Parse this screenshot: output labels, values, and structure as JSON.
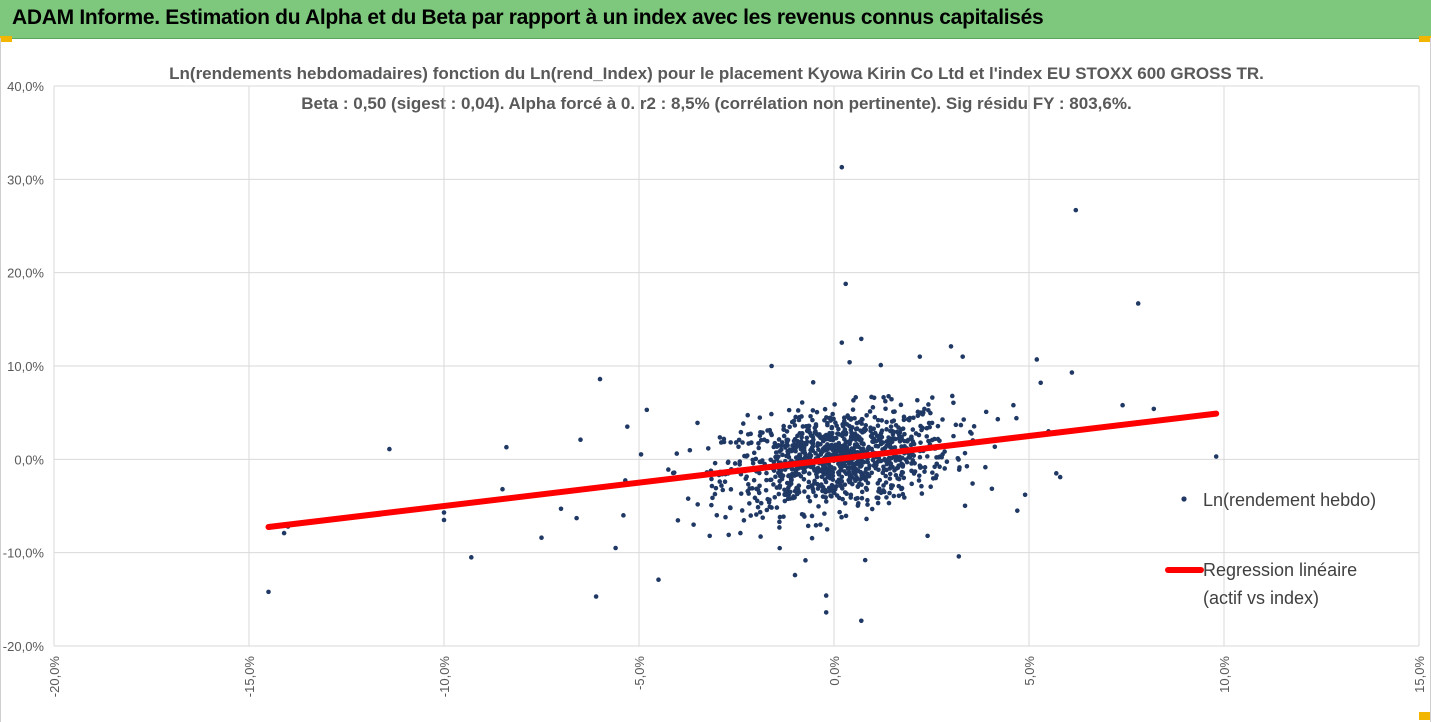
{
  "header": {
    "title": "ADAM Informe. Estimation du Alpha et du Beta par rapport à un index avec les revenus connus capitalisés"
  },
  "colors": {
    "header_bg": "#7dc87d",
    "points": "#1f3864",
    "regression": "#ff0000",
    "grid": "#d9d9d9",
    "text": "#595959"
  },
  "chart_data": {
    "type": "scatter",
    "title_line1": "Ln(rendements hebdomadaires) fonction du Ln(rend_Index) pour le placement Kyowa Kirin Co Ltd et l'index EU STOXX 600 GROSS TR.",
    "title_line2": "Beta : 0,50 (sigest : 0,04). Alpha forcé à 0. r2 : 8,5% (corrélation non pertinente). Sig résidu FY : 803,6%.",
    "xlim": [
      -20,
      15
    ],
    "ylim": [
      -20,
      40
    ],
    "x_ticks": [
      -20,
      -15,
      -10,
      -5,
      0,
      5,
      10,
      15
    ],
    "y_ticks": [
      -20,
      -10,
      0,
      10,
      20,
      30,
      40
    ],
    "x_tick_labels": [
      "-20,0%",
      "-15,0%",
      "-10,0%",
      "-5,0%",
      "0,0%",
      "5,0%",
      "10,0%",
      "15,0%"
    ],
    "y_tick_labels": [
      "-20,0%",
      "-10,0%",
      "0,0%",
      "10,0%",
      "20,0%",
      "30,0%",
      "40,0%"
    ],
    "grid": true,
    "legend_position": "right",
    "series": [
      {
        "name": "Ln(rendement hebdo)",
        "kind": "points",
        "color": "#1f3864",
        "notable_points": [
          [
            0.2,
            31.3
          ],
          [
            6.2,
            26.7
          ],
          [
            0.3,
            18.8
          ],
          [
            7.8,
            16.7
          ],
          [
            0.7,
            12.9
          ],
          [
            0.2,
            12.5
          ],
          [
            3.0,
            12.1
          ],
          [
            5.2,
            10.7
          ],
          [
            6.1,
            9.3
          ],
          [
            -6.0,
            8.6
          ],
          [
            -11.4,
            1.1
          ],
          [
            -8.4,
            1.3
          ],
          [
            9.8,
            0.3
          ],
          [
            7.4,
            5.8
          ],
          [
            8.2,
            5.4
          ],
          [
            -14.5,
            -14.2
          ],
          [
            -14.1,
            -7.9
          ],
          [
            -14.0,
            -7.2
          ],
          [
            -10.0,
            -6.5
          ],
          [
            -10.0,
            -5.7
          ],
          [
            -9.3,
            -10.5
          ],
          [
            -8.5,
            -3.2
          ],
          [
            -7.5,
            -8.4
          ],
          [
            -6.1,
            -14.7
          ],
          [
            -5.6,
            -9.5
          ],
          [
            -4.5,
            -12.9
          ],
          [
            -1.0,
            -12.4
          ],
          [
            -0.2,
            -14.6
          ],
          [
            -0.2,
            -16.4
          ],
          [
            0.7,
            -17.3
          ],
          [
            0.8,
            -10.8
          ],
          [
            3.2,
            -10.4
          ],
          [
            -4.8,
            5.3
          ],
          [
            -5.3,
            3.5
          ],
          [
            -3.5,
            3.9
          ],
          [
            -6.5,
            2.1
          ],
          [
            -7.0,
            -5.3
          ],
          [
            -6.6,
            -6.3
          ],
          [
            -5.4,
            -6.0
          ],
          [
            -1.6,
            10.0
          ],
          [
            0.4,
            10.4
          ],
          [
            1.2,
            10.1
          ],
          [
            2.2,
            11.0
          ],
          [
            3.3,
            11.0
          ],
          [
            4.6,
            5.8
          ],
          [
            4.2,
            4.3
          ],
          [
            5.3,
            8.2
          ],
          [
            5.7,
            -1.5
          ],
          [
            5.8,
            -1.9
          ],
          [
            5.5,
            3.0
          ],
          [
            4.9,
            -3.8
          ],
          [
            4.7,
            -5.5
          ],
          [
            2.4,
            -8.2
          ],
          [
            -2.7,
            -8.1
          ],
          [
            -2.4,
            -7.9
          ],
          [
            -3.6,
            -7.0
          ],
          [
            -1.4,
            -7.3
          ]
        ],
        "cluster": {
          "n": 1100,
          "x_mean": 0.1,
          "x_sd": 1.45,
          "y_mean": 0.0,
          "y_sd": 2.6
        }
      },
      {
        "name": "Regression linéaire\n(actif vs index)",
        "kind": "line",
        "color": "#ff0000",
        "x": [
          -14.5,
          9.8
        ],
        "y": [
          -7.25,
          4.9
        ]
      }
    ],
    "legend": [
      {
        "label": "Ln(rendement hebdo)"
      },
      {
        "label_line1": "Regression linéaire",
        "label_line2": "(actif vs index)"
      }
    ]
  }
}
